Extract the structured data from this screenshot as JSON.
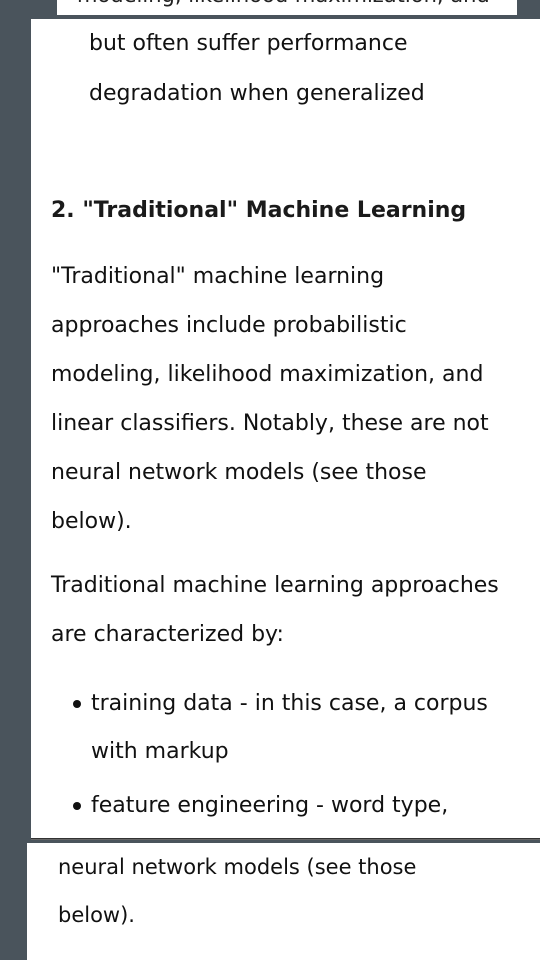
{
  "back_top": {
    "clipped_text": "modeling, likelihood maximization, and"
  },
  "card": {
    "top_lines": [
      "but often suffer performance",
      "degradation when generalized"
    ],
    "heading": "2. \"Traditional\" Machine Learning",
    "para1_lines": [
      "\"Traditional\" machine learning",
      "approaches include probabilistic",
      "modeling, likelihood maximization, and",
      "linear classifiers. Notably, these are not",
      "neural network models (see those",
      "below)."
    ],
    "para2_lines": [
      "Traditional machine learning approaches",
      "are characterized by:"
    ],
    "list_items": [
      {
        "lines": [
          "training data - in this case, a corpus",
          "with markup"
        ]
      },
      {
        "lines": [
          "feature engineering - word type,"
        ]
      }
    ]
  },
  "back_bottom": {
    "lines": [
      "neural network models (see those",
      "below)."
    ]
  }
}
